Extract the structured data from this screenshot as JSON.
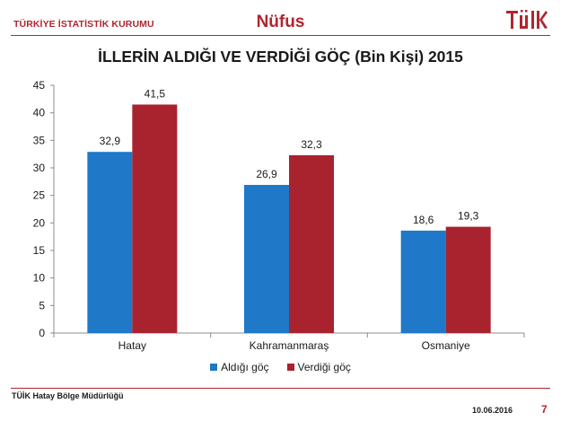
{
  "header": {
    "organization": "TÜRKİYE İSTATİSTİK KURUMU",
    "topic": "Nüfus",
    "logo_text": "TÜİK"
  },
  "footer": {
    "office": "TÜİK Hatay Bölge Müdürlüğü",
    "date": "10.06.2016",
    "page": "7"
  },
  "colors": {
    "brand": "#b1252f",
    "series_1": "#1f78c8",
    "series_2": "#a8232e"
  },
  "chart_data": {
    "type": "bar",
    "title": "İLLERİN ALDIĞI VE VERDİĞİ GÖÇ (Bin Kişi) 2015",
    "categories": [
      "Hatay",
      "Kahramanmaraş",
      "Osmaniye"
    ],
    "series": [
      {
        "name": "Aldığı göç",
        "values": [
          32.9,
          26.9,
          18.6
        ],
        "labels": [
          "32,9",
          "26,9",
          "18,6"
        ]
      },
      {
        "name": "Verdiği göç",
        "values": [
          41.5,
          32.3,
          19.3
        ],
        "labels": [
          "41,5",
          "32,3",
          "19,3"
        ]
      }
    ],
    "ylim": [
      0,
      45
    ],
    "yticks": [
      "0",
      "5",
      "10",
      "15",
      "20",
      "25",
      "30",
      "35",
      "40",
      "45"
    ],
    "grid": false,
    "legend_position": "bottom"
  }
}
